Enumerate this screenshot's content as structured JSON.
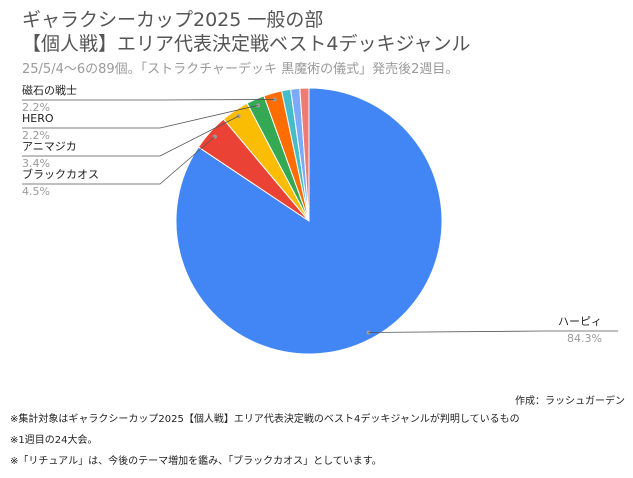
{
  "title_lines": [
    "ギャラクシーカップ2025 一般の部",
    "【個人戦】エリア代表決定戦ベスト4デッキジャンル"
  ],
  "subtitle": "25/5/4～6の89個。「ストラクチャーデッキ 黒魔術の儀式」発売後2週目。",
  "credit": "作成：ラッシュガーデン",
  "notes": [
    "※集計対象はギャラクシーカップ2025【個人戦】エリア代表決定戦のベスト4デッキジャンルが判明しているもの",
    "※1週目の24大会。",
    "※「リチュアル」は、今後のテーマ増加を鑑み、「ブラックカオス」としています。"
  ],
  "chart_data": {
    "type": "pie",
    "unit": "%",
    "slices": [
      {
        "label": "ハーピィ",
        "value": 84.3,
        "value_label": "84.3%",
        "color": "#4285f4"
      },
      {
        "label": "ブラックカオス",
        "value": 4.5,
        "value_label": "4.5%",
        "color": "#ea4335"
      },
      {
        "label": "アニマジカ",
        "value": 3.4,
        "value_label": "3.4%",
        "color": "#fbbc04"
      },
      {
        "label": "HERO",
        "value": 2.2,
        "value_label": "2.2%",
        "color": "#34a853"
      },
      {
        "label": "磁石の戦士",
        "value": 2.2,
        "value_label": "2.2%",
        "color": "#ff6d01"
      },
      {
        "label": "",
        "value": 1.1,
        "value_label": "",
        "color": "#46bdc6"
      },
      {
        "label": "",
        "value": 1.1,
        "value_label": "",
        "color": "#7baaf7"
      },
      {
        "label": "",
        "value": 1.1,
        "value_label": "",
        "color": "#f07b72"
      }
    ]
  }
}
